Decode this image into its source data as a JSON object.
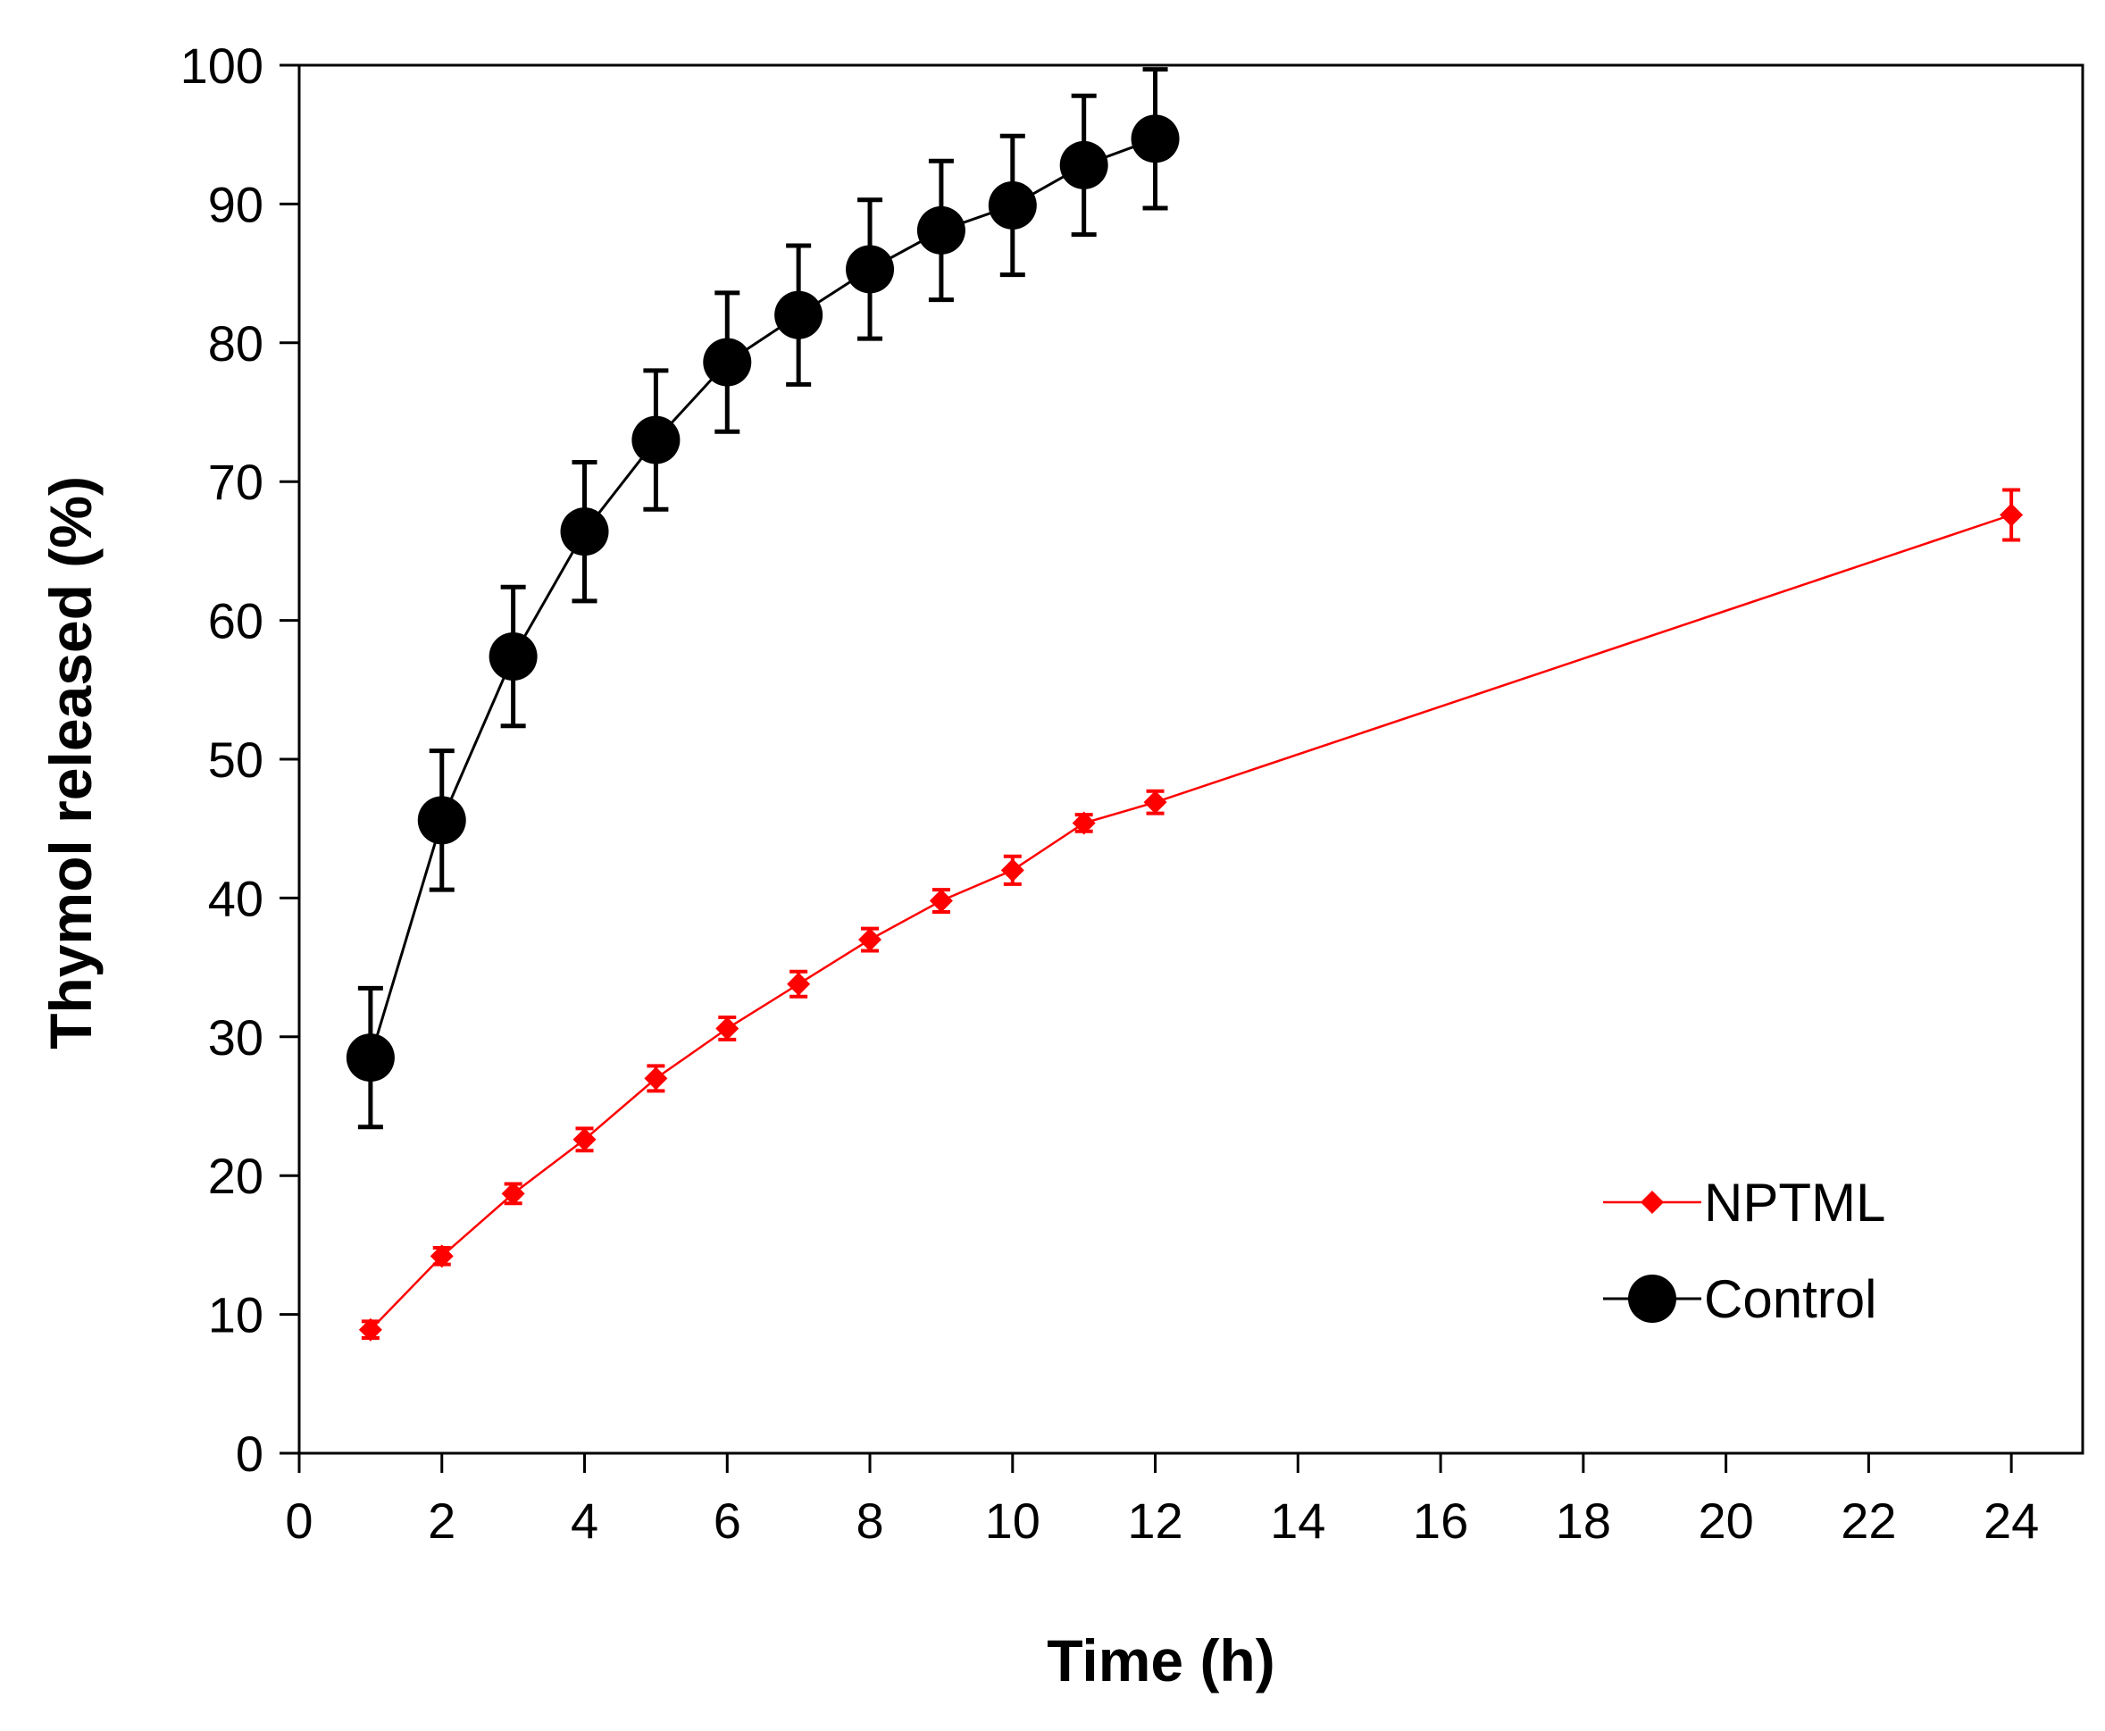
{
  "chart_data": {
    "type": "line",
    "title": "",
    "xlabel": "Time (h)",
    "ylabel": "Thymol released (%)",
    "xlim": [
      0,
      25
    ],
    "ylim": [
      0,
      100
    ],
    "xticks": [
      0,
      2,
      4,
      6,
      8,
      10,
      12,
      14,
      16,
      18,
      20,
      22,
      24
    ],
    "yticks": [
      0,
      10,
      20,
      30,
      40,
      50,
      60,
      70,
      80,
      90,
      100
    ],
    "grid": false,
    "legend_position": "bottom-right",
    "series": [
      {
        "name": "NPTML",
        "color": "#ff0000",
        "marker": "diamond",
        "x": [
          1,
          2,
          3,
          4,
          5,
          6,
          7,
          8,
          9,
          10,
          11,
          12,
          24
        ],
        "y": [
          8.9,
          14.2,
          18.7,
          22.6,
          27.0,
          30.6,
          33.8,
          37.0,
          39.8,
          42.0,
          45.4,
          46.9,
          67.6
        ],
        "error": [
          0.6,
          0.6,
          0.7,
          0.8,
          0.9,
          0.8,
          0.9,
          0.8,
          0.8,
          1.0,
          0.6,
          0.8,
          1.8
        ]
      },
      {
        "name": "Control",
        "color": "#000000",
        "marker": "circle",
        "x": [
          1,
          2,
          3,
          4,
          5,
          6,
          7,
          8,
          9,
          10,
          11,
          12
        ],
        "y": [
          28.5,
          45.6,
          57.4,
          66.4,
          73.0,
          78.6,
          82.0,
          85.3,
          88.1,
          89.9,
          92.8,
          94.7
        ],
        "error": [
          5.0,
          5.0,
          5.0,
          5.0,
          5.0,
          5.0,
          5.0,
          5.0,
          5.0,
          5.0,
          5.0,
          5.0
        ]
      }
    ]
  }
}
